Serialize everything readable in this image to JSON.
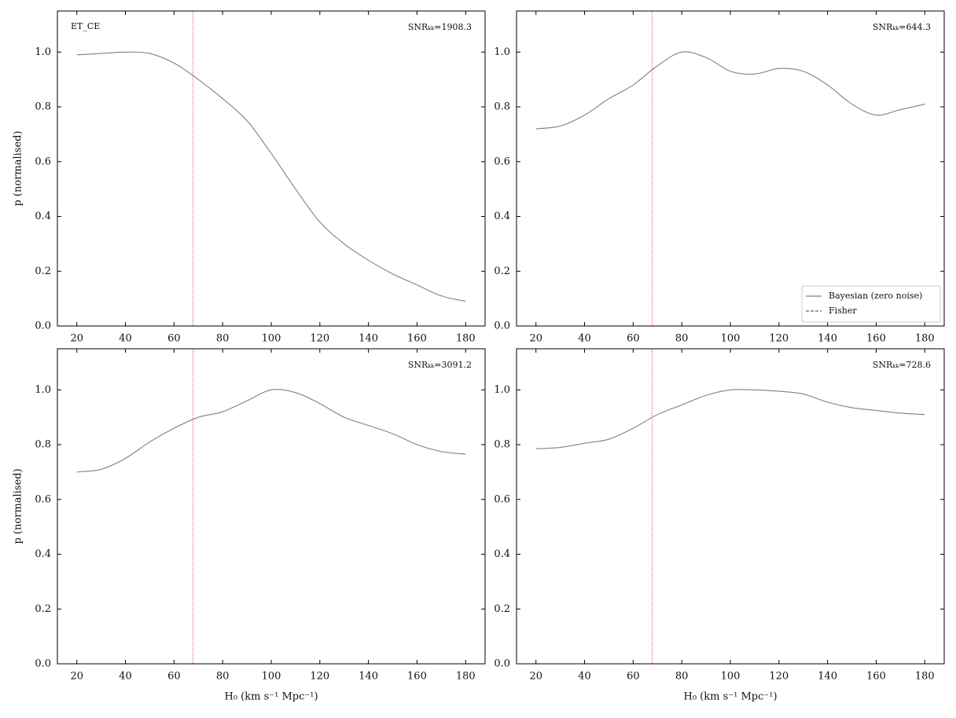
{
  "chart_data": [
    {
      "type": "line",
      "label": "ET_CE",
      "annotation": "SNRₖₖ=1908.3",
      "ylabel": "p (normalised)",
      "x": [
        20,
        30,
        40,
        50,
        60,
        70,
        80,
        90,
        100,
        110,
        120,
        130,
        140,
        150,
        160,
        170,
        180
      ],
      "series": [
        {
          "color": "#808080",
          "values": [
            0.99,
            0.995,
            1.0,
            0.995,
            0.96,
            0.9,
            0.83,
            0.75,
            0.63,
            0.5,
            0.38,
            0.3,
            0.24,
            0.19,
            0.15,
            0.11,
            0.09
          ]
        }
      ],
      "vline": 67.8,
      "vline_color": "#e05050",
      "xlim": [
        12,
        188
      ],
      "xticks": [
        20,
        40,
        60,
        80,
        100,
        120,
        140,
        160,
        180
      ],
      "ylim": [
        0,
        1.15
      ],
      "yticks": [
        {
          "value": 0,
          "label": "0.0"
        },
        0.2,
        0.4,
        0.6,
        0.8,
        {
          "value": 1,
          "label": "1.0"
        }
      ]
    },
    {
      "type": "line",
      "annotation": "SNRₖₖ=644.3",
      "x": [
        20,
        30,
        40,
        50,
        60,
        70,
        80,
        90,
        100,
        110,
        120,
        130,
        140,
        150,
        160,
        170,
        180
      ],
      "series": [
        {
          "name": "Bayesian (zero noise)",
          "color": "#808080",
          "values": [
            0.72,
            0.73,
            0.77,
            0.83,
            0.88,
            0.95,
            1.0,
            0.98,
            0.93,
            0.92,
            0.94,
            0.93,
            0.88,
            0.81,
            0.77,
            0.79,
            0.81
          ]
        },
        {
          "name": "Fisher",
          "color": "#1f77b4",
          "dashed": true,
          "values": [
            null,
            null,
            null,
            null,
            null,
            null,
            null,
            null,
            null,
            null,
            null,
            null,
            null,
            null,
            null,
            null,
            null
          ]
        }
      ],
      "legend": "lower right",
      "vline": 67.8,
      "vline_color": "#e05050",
      "xlim": [
        12,
        188
      ],
      "xticks": [
        20,
        40,
        60,
        80,
        100,
        120,
        140,
        160,
        180
      ],
      "ylim": [
        0,
        1.15
      ],
      "yticks": [
        {
          "value": 0,
          "label": "0.0"
        },
        0.2,
        0.4,
        0.6,
        0.8,
        {
          "value": 1,
          "label": "1.0"
        }
      ]
    },
    {
      "type": "line",
      "annotation": "SNRₖₖ=3091.2",
      "ylabel": "p (normalised)",
      "xlabel": "H₀ (km s⁻¹ Mpc⁻¹)",
      "x": [
        20,
        30,
        40,
        50,
        60,
        70,
        80,
        90,
        100,
        110,
        120,
        130,
        140,
        150,
        160,
        170,
        180
      ],
      "series": [
        {
          "color": "#808080",
          "values": [
            0.7,
            0.71,
            0.75,
            0.81,
            0.86,
            0.9,
            0.92,
            0.96,
            1.0,
            0.99,
            0.95,
            0.9,
            0.87,
            0.84,
            0.8,
            0.775,
            0.765
          ]
        }
      ],
      "vline": 67.8,
      "vline_color": "#e05050",
      "xlim": [
        12,
        188
      ],
      "xticks": [
        20,
        40,
        60,
        80,
        100,
        120,
        140,
        160,
        180
      ],
      "ylim": [
        0,
        1.15
      ],
      "yticks": [
        {
          "value": 0,
          "label": "0.0"
        },
        0.2,
        0.4,
        0.6,
        0.8,
        {
          "value": 1,
          "label": "1.0"
        }
      ]
    },
    {
      "type": "line",
      "annotation": "SNRₖₖ=728.6",
      "xlabel": "H₀ (km s⁻¹ Mpc⁻¹)",
      "x": [
        20,
        30,
        40,
        50,
        60,
        70,
        80,
        90,
        100,
        110,
        120,
        130,
        140,
        150,
        160,
        170,
        180
      ],
      "series": [
        {
          "color": "#808080",
          "values": [
            0.785,
            0.79,
            0.805,
            0.82,
            0.86,
            0.91,
            0.945,
            0.98,
            1.0,
            1.0,
            0.995,
            0.985,
            0.955,
            0.935,
            0.925,
            0.915,
            0.91
          ]
        }
      ],
      "vline": 67.8,
      "vline_color": "#e05050",
      "xlim": [
        12,
        188
      ],
      "xticks": [
        20,
        40,
        60,
        80,
        100,
        120,
        140,
        160,
        180
      ],
      "ylim": [
        0,
        1.15
      ],
      "yticks": [
        {
          "value": 0,
          "label": "0.0"
        },
        0.2,
        0.4,
        0.6,
        0.8,
        {
          "value": 1,
          "label": "1.0"
        }
      ]
    }
  ]
}
